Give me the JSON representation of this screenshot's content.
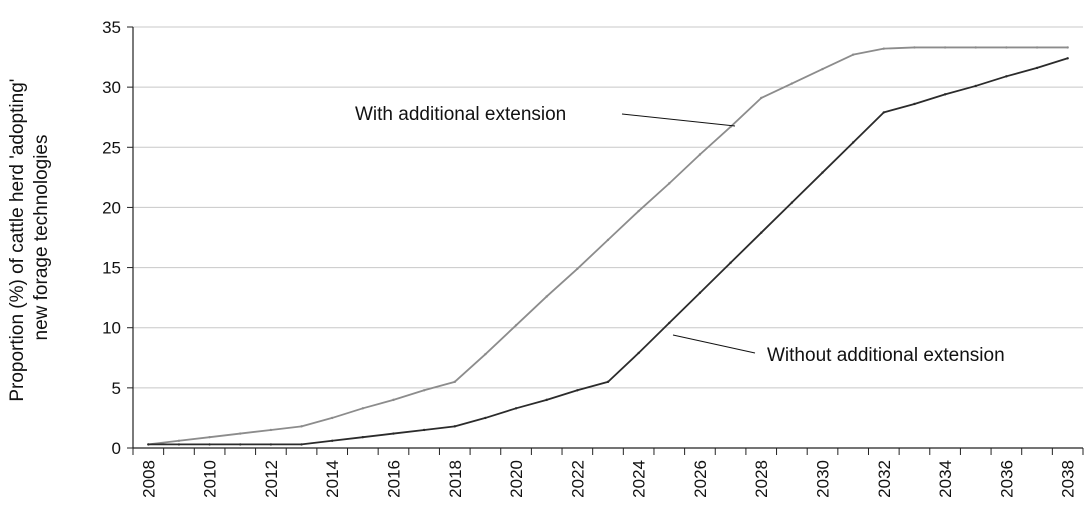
{
  "chart_data": {
    "type": "line",
    "title": "",
    "ylabel": [
      "Proportion (%) of cattle herd 'adopting'",
      "new forage technologies"
    ],
    "xlabel": "",
    "x": [
      2008,
      2009,
      2010,
      2011,
      2012,
      2013,
      2014,
      2015,
      2016,
      2017,
      2018,
      2019,
      2020,
      2021,
      2022,
      2023,
      2024,
      2025,
      2026,
      2027,
      2028,
      2029,
      2030,
      2031,
      2032,
      2033,
      2034,
      2035,
      2036,
      2037,
      2038
    ],
    "xticks": [
      "2008",
      "2010",
      "2012",
      "2014",
      "2016",
      "2018",
      "2020",
      "2022",
      "2024",
      "2026",
      "2028",
      "2030",
      "2032",
      "2034",
      "2036",
      "2038"
    ],
    "ylim": [
      0,
      35
    ],
    "yticks": [
      "0",
      "5",
      "10",
      "15",
      "20",
      "25",
      "30",
      "35"
    ],
    "grid": true,
    "series": [
      {
        "name": "With additional extension",
        "color": "#8c8c8c",
        "values": [
          0.3,
          0.6,
          0.9,
          1.2,
          1.5,
          1.8,
          2.5,
          3.3,
          4.0,
          4.8,
          5.5,
          7.8,
          10.2,
          12.6,
          14.9,
          17.3,
          19.7,
          22.0,
          24.4,
          26.7,
          29.1,
          30.3,
          31.5,
          32.7,
          33.2,
          33.3,
          33.3,
          33.3,
          33.3,
          33.3,
          33.3
        ],
        "values_note_removed": true
      },
      {
        "name": "Without additional extension",
        "color": "#2b2b2b",
        "values": [
          0.3,
          0.3,
          0.3,
          0.3,
          0.3,
          0.3,
          0.6,
          0.9,
          1.2,
          1.5,
          1.8,
          2.5,
          3.3,
          4.0,
          4.8,
          5.5,
          7.9,
          10.4,
          12.9,
          15.4,
          17.9,
          20.4,
          22.9,
          25.4,
          27.9,
          28.6,
          29.4,
          30.1,
          30.9,
          31.6,
          32.4
        ]
      }
    ],
    "annotations": [
      {
        "text": "With additional extension"
      },
      {
        "text": "Without additional extension"
      }
    ]
  }
}
